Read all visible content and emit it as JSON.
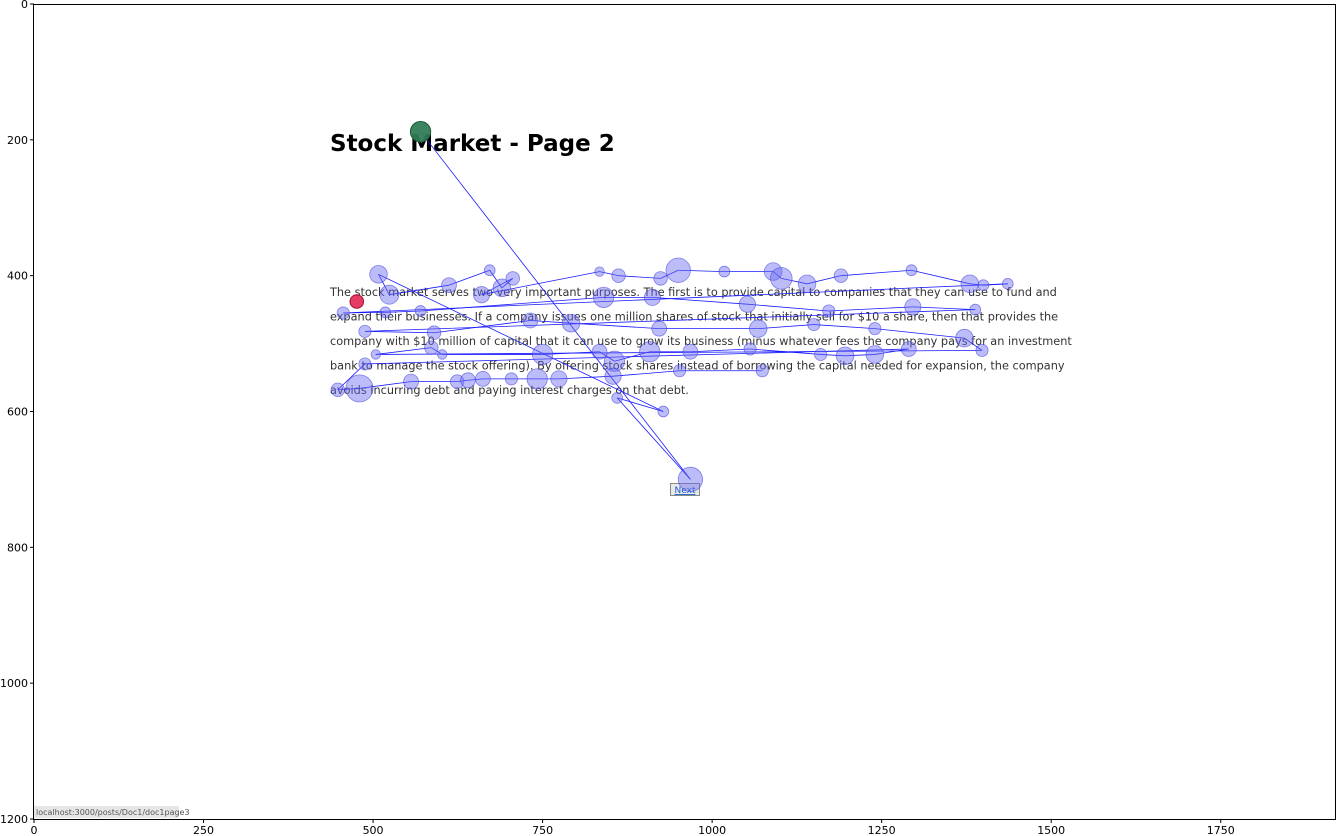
{
  "chart_data": {
    "type": "scatter",
    "xlim": [
      0,
      1920
    ],
    "ylim": [
      1200,
      0
    ],
    "x_ticks": [
      0,
      250,
      500,
      750,
      1000,
      1250,
      1500,
      1750
    ],
    "y_ticks": [
      0,
      200,
      400,
      600,
      800,
      1000,
      1200
    ],
    "x_tick_labels": [
      "0",
      "250",
      "500",
      "750",
      "1000",
      "1250",
      "1500",
      "1750"
    ],
    "y_tick_labels": [
      "0",
      "200",
      "400",
      "600",
      "800",
      "1000",
      "1200"
    ],
    "grid": false,
    "background_page": {
      "title": "Stock Market - Page 2",
      "paragraph_lines": [
        "The stock market serves two very important purposes. The first is to provide capital to companies that they can use to fund and",
        "expand their businesses. If a company issues one million shares of stock that initially sell for $10 a share, then that provides the",
        "company with $10 million of capital that it can use to grow its business (minus whatever fees the company pays for an investment",
        "bank to manage the stock offering). By offering stock shares instead of borrowing the capital needed for expansion, the company",
        "avoids incurring debt and paying interest charges on that debt."
      ],
      "button_label": "Next",
      "status_url": "localhost:3000/posts/Doc1/doc1page3"
    },
    "start_point": {
      "x": 570,
      "y": 188,
      "color": "#2e7d4f"
    },
    "end_point": {
      "x": 476,
      "y": 438,
      "color": "#e0194a"
    },
    "fixation_color": "#6b6bef",
    "path_color": "#1a1aff",
    "fixations": [
      {
        "x": 570,
        "y": 188,
        "r": 15
      },
      {
        "x": 968,
        "y": 700,
        "r": 18
      },
      {
        "x": 860,
        "y": 580,
        "r": 8
      },
      {
        "x": 928,
        "y": 600,
        "r": 8
      },
      {
        "x": 508,
        "y": 398,
        "r": 13
      },
      {
        "x": 524,
        "y": 428,
        "r": 14
      },
      {
        "x": 612,
        "y": 414,
        "r": 11
      },
      {
        "x": 672,
        "y": 392,
        "r": 8
      },
      {
        "x": 690,
        "y": 418,
        "r": 13
      },
      {
        "x": 706,
        "y": 404,
        "r": 10
      },
      {
        "x": 660,
        "y": 428,
        "r": 12
      },
      {
        "x": 834,
        "y": 394,
        "r": 7
      },
      {
        "x": 862,
        "y": 400,
        "r": 10
      },
      {
        "x": 924,
        "y": 404,
        "r": 10
      },
      {
        "x": 950,
        "y": 392,
        "r": 18
      },
      {
        "x": 1018,
        "y": 394,
        "r": 8
      },
      {
        "x": 1090,
        "y": 394,
        "r": 13
      },
      {
        "x": 1102,
        "y": 404,
        "r": 16
      },
      {
        "x": 1140,
        "y": 412,
        "r": 13
      },
      {
        "x": 1190,
        "y": 400,
        "r": 10
      },
      {
        "x": 1294,
        "y": 392,
        "r": 8
      },
      {
        "x": 1380,
        "y": 412,
        "r": 13
      },
      {
        "x": 1400,
        "y": 414,
        "r": 8
      },
      {
        "x": 1436,
        "y": 412,
        "r": 8
      },
      {
        "x": 456,
        "y": 455,
        "r": 9
      },
      {
        "x": 518,
        "y": 454,
        "r": 8
      },
      {
        "x": 570,
        "y": 452,
        "r": 8
      },
      {
        "x": 840,
        "y": 432,
        "r": 15
      },
      {
        "x": 912,
        "y": 432,
        "r": 12
      },
      {
        "x": 1052,
        "y": 442,
        "r": 12
      },
      {
        "x": 1172,
        "y": 452,
        "r": 9
      },
      {
        "x": 1296,
        "y": 446,
        "r": 12
      },
      {
        "x": 1388,
        "y": 450,
        "r": 8
      },
      {
        "x": 488,
        "y": 482,
        "r": 9
      },
      {
        "x": 590,
        "y": 484,
        "r": 10
      },
      {
        "x": 732,
        "y": 466,
        "r": 11
      },
      {
        "x": 792,
        "y": 470,
        "r": 13
      },
      {
        "x": 922,
        "y": 478,
        "r": 11
      },
      {
        "x": 1068,
        "y": 478,
        "r": 13
      },
      {
        "x": 1150,
        "y": 472,
        "r": 9
      },
      {
        "x": 1240,
        "y": 478,
        "r": 9
      },
      {
        "x": 1372,
        "y": 492,
        "r": 13
      },
      {
        "x": 1398,
        "y": 510,
        "r": 9
      },
      {
        "x": 504,
        "y": 516,
        "r": 7
      },
      {
        "x": 586,
        "y": 506,
        "r": 10
      },
      {
        "x": 602,
        "y": 516,
        "r": 7
      },
      {
        "x": 750,
        "y": 516,
        "r": 15
      },
      {
        "x": 834,
        "y": 512,
        "r": 11
      },
      {
        "x": 856,
        "y": 526,
        "r": 15
      },
      {
        "x": 908,
        "y": 512,
        "r": 15
      },
      {
        "x": 968,
        "y": 512,
        "r": 11
      },
      {
        "x": 1056,
        "y": 508,
        "r": 9
      },
      {
        "x": 1160,
        "y": 516,
        "r": 9
      },
      {
        "x": 1196,
        "y": 518,
        "r": 13
      },
      {
        "x": 1240,
        "y": 516,
        "r": 13
      },
      {
        "x": 1290,
        "y": 508,
        "r": 11
      },
      {
        "x": 488,
        "y": 530,
        "r": 9
      },
      {
        "x": 448,
        "y": 568,
        "r": 10
      },
      {
        "x": 480,
        "y": 566,
        "r": 20
      },
      {
        "x": 556,
        "y": 556,
        "r": 11
      },
      {
        "x": 624,
        "y": 556,
        "r": 10
      },
      {
        "x": 640,
        "y": 554,
        "r": 11
      },
      {
        "x": 662,
        "y": 552,
        "r": 11
      },
      {
        "x": 704,
        "y": 552,
        "r": 9
      },
      {
        "x": 742,
        "y": 552,
        "r": 15
      },
      {
        "x": 774,
        "y": 552,
        "r": 12
      },
      {
        "x": 854,
        "y": 548,
        "r": 12
      },
      {
        "x": 952,
        "y": 540,
        "r": 9
      },
      {
        "x": 1074,
        "y": 540,
        "r": 9
      }
    ],
    "path_order": [
      0,
      1,
      2,
      3,
      4,
      5,
      6,
      7,
      8,
      9,
      10,
      11,
      12,
      13,
      14,
      15,
      16,
      17,
      18,
      19,
      20,
      21,
      22,
      23,
      24,
      25,
      26,
      27,
      28,
      29,
      30,
      31,
      32,
      33,
      34,
      35,
      36,
      37,
      38,
      39,
      40,
      41,
      42,
      43,
      44,
      45,
      46,
      47,
      48,
      49,
      50,
      51,
      52,
      53,
      54,
      55,
      56,
      57,
      58,
      59,
      60,
      61,
      62,
      63,
      64,
      65,
      66,
      67,
      68
    ]
  }
}
